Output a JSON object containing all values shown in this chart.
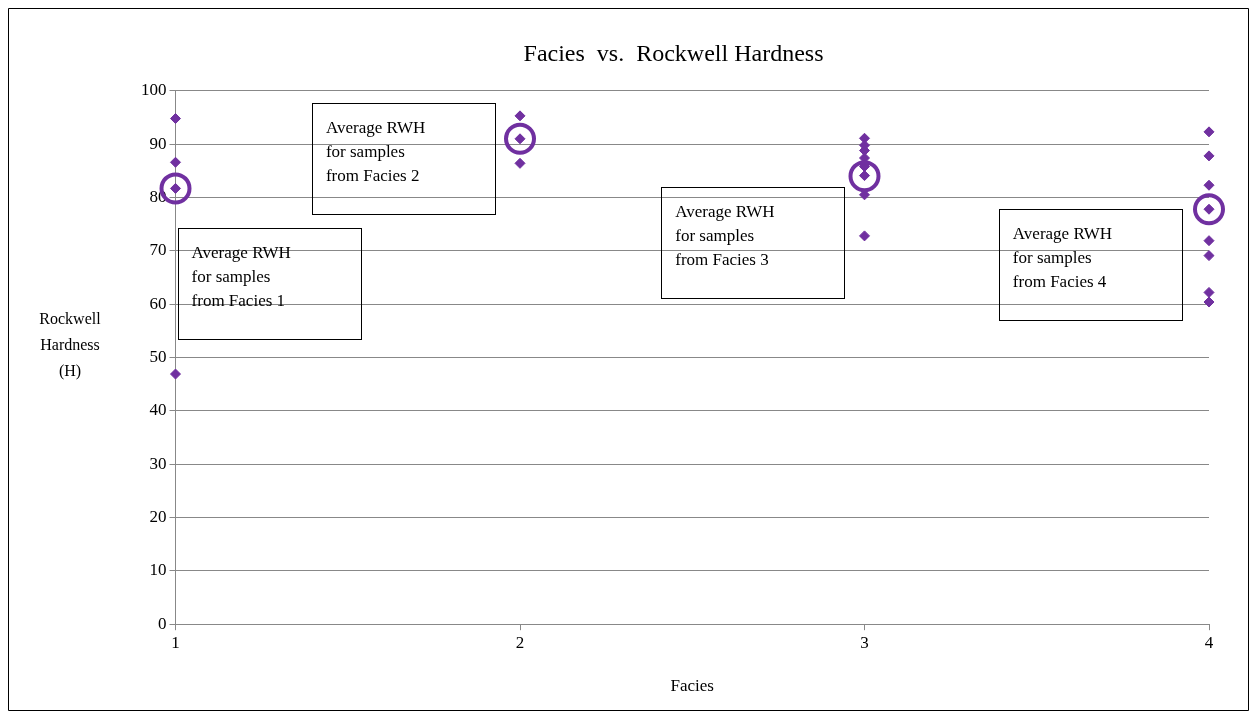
{
  "chart_data": {
    "type": "scatter",
    "title": "Facies  vs.  Rockwell Hardness",
    "xlabel": "Facies",
    "ylabel": "Rockwell Hardness (H)",
    "xlim": [
      1,
      4
    ],
    "xticks": [
      1,
      2,
      3,
      4
    ],
    "ylim": [
      0,
      100
    ],
    "yticks": [
      0,
      10,
      20,
      30,
      40,
      50,
      60,
      70,
      80,
      90,
      100
    ],
    "grid": "y",
    "legend": false,
    "series": [
      {
        "color": "#7030a0",
        "marker": "diamond",
        "x": [
          1,
          1,
          1,
          1,
          2,
          2,
          2,
          3,
          3,
          3,
          3,
          3,
          3,
          3,
          3,
          4,
          4,
          4,
          4,
          4,
          4,
          4,
          4
        ],
        "values": [
          94.8,
          86.6,
          81.7,
          46.9,
          95.3,
          91,
          86.4,
          91.1,
          89.8,
          88.8,
          87.4,
          85.8,
          84.1,
          80.5,
          72.8,
          92.3,
          87.8,
          82.3,
          77.8,
          71.9,
          69.1,
          62.2,
          60.4
        ]
      },
      {
        "color": "#7030a0",
        "marker": "circle",
        "x": [
          1,
          2,
          3,
          4
        ],
        "values": [
          81.7,
          91,
          84,
          77.8
        ]
      }
    ],
    "annotations": [
      "Average RWH for samples from Facies 1",
      "Average RWH for samples from Facies 2",
      "Average RWH for samples from Facies 3",
      "Average RWH for samples from Facies 4"
    ]
  }
}
